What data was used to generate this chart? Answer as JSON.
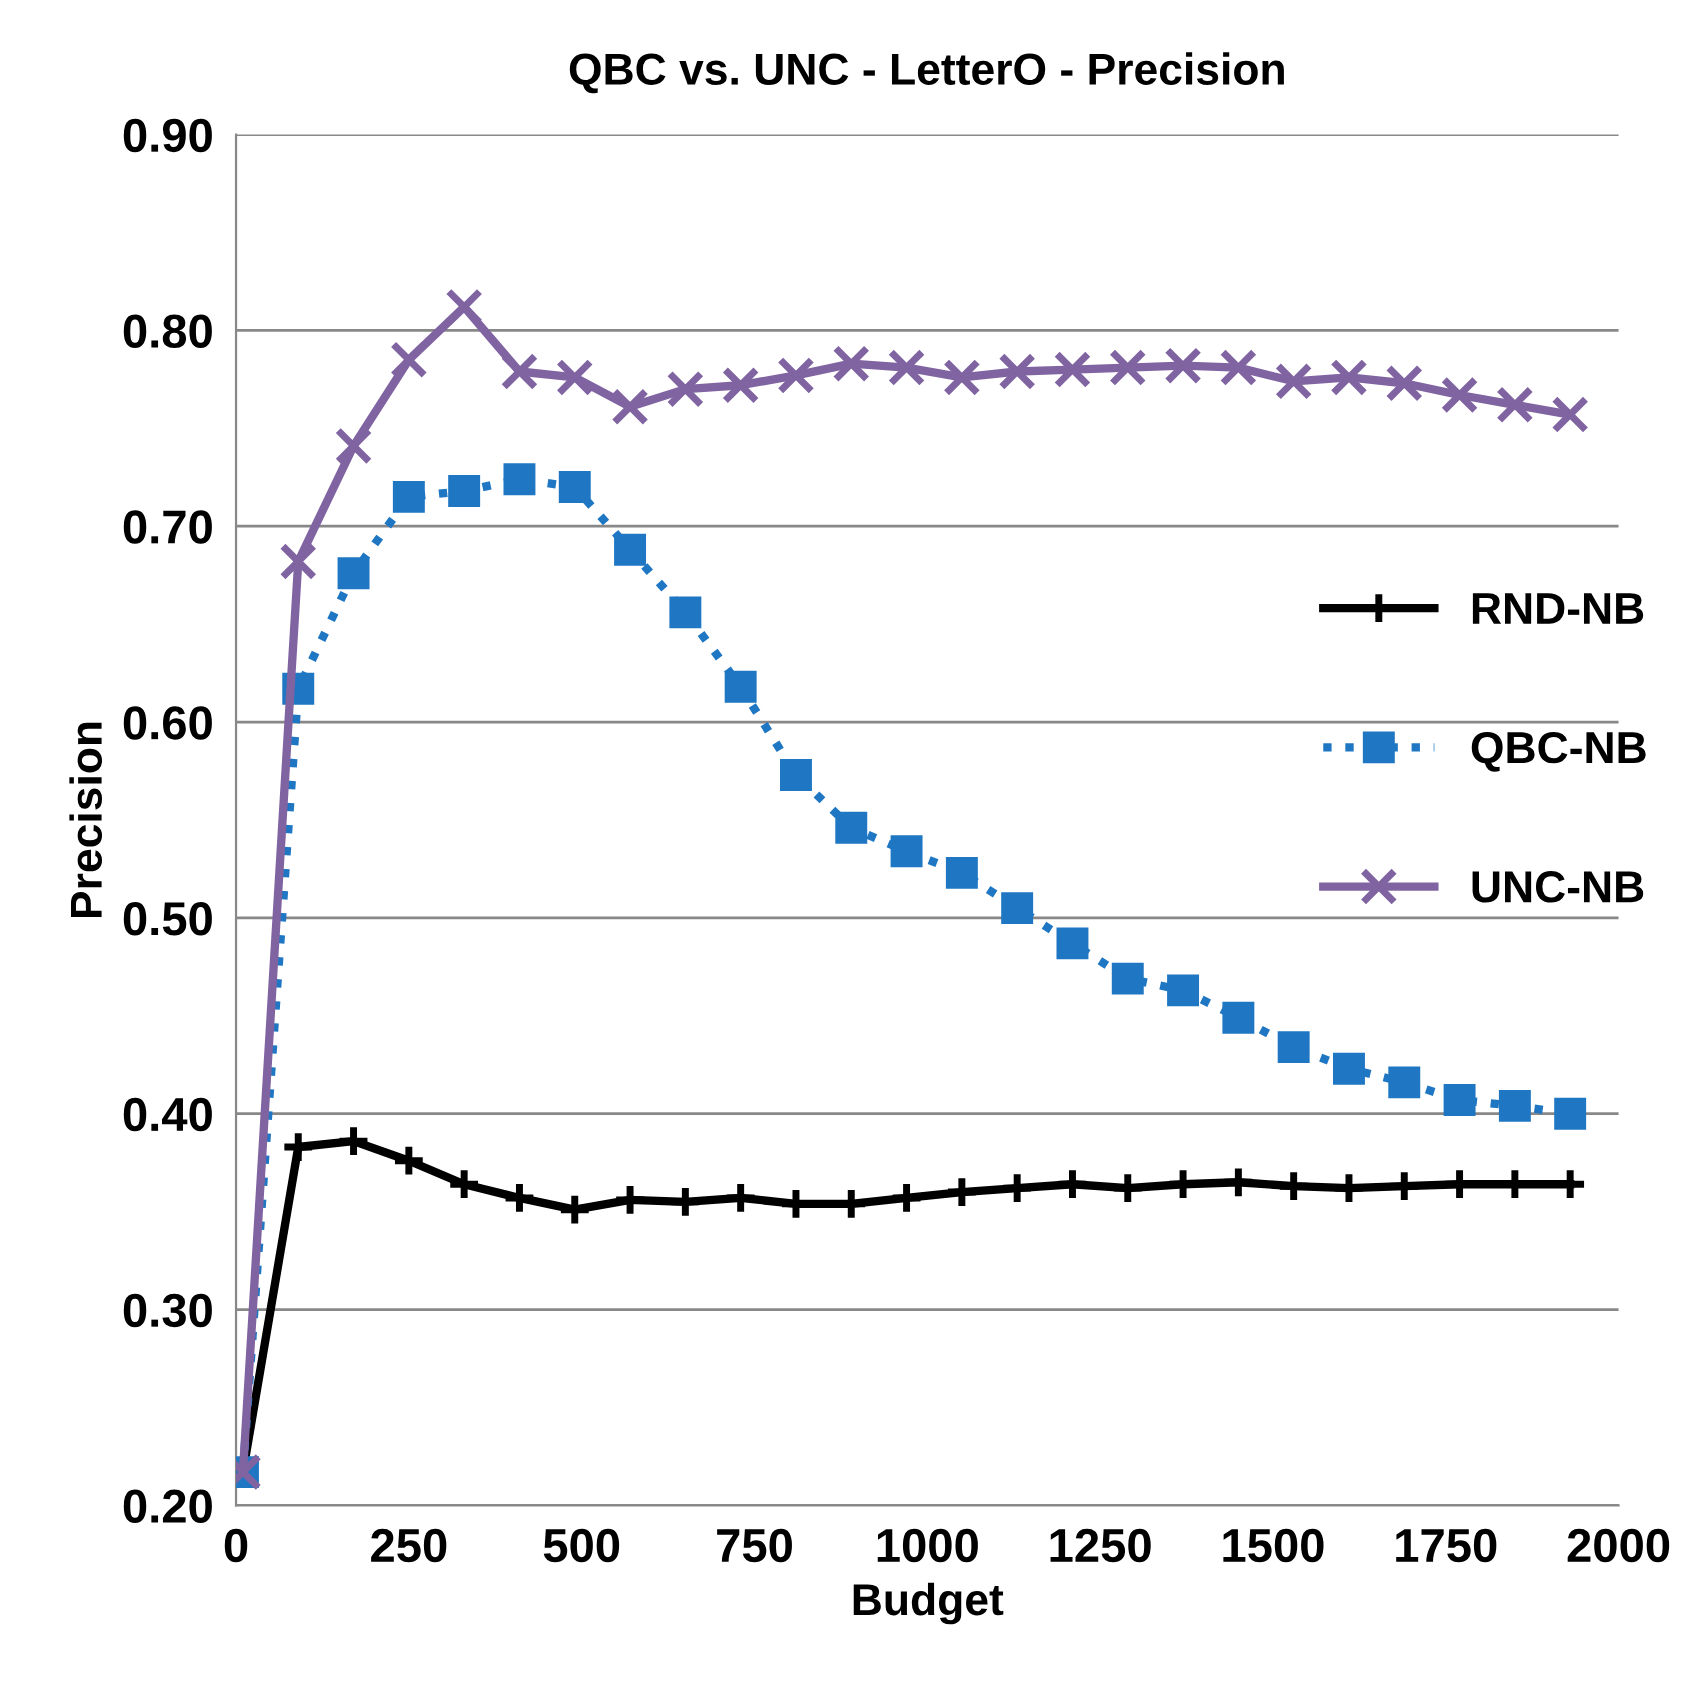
{
  "chart_data": {
    "type": "line",
    "title": "QBC vs. UNC - LetterO - Precision",
    "xlabel": "Budget",
    "ylabel": "Precision",
    "x": [
      10,
      90,
      170,
      250,
      330,
      410,
      490,
      570,
      650,
      730,
      810,
      890,
      970,
      1050,
      1130,
      1210,
      1290,
      1370,
      1450,
      1530,
      1610,
      1690,
      1770,
      1850,
      1930
    ],
    "series": [
      {
        "name": "RND-NB",
        "color": "#000000",
        "marker": "cross",
        "line_style": "solid",
        "values": [
          0.217,
          0.383,
          0.386,
          0.376,
          0.364,
          0.357,
          0.351,
          0.356,
          0.355,
          0.357,
          0.354,
          0.354,
          0.357,
          0.36,
          0.362,
          0.364,
          0.362,
          0.364,
          0.365,
          0.363,
          0.362,
          0.363,
          0.364,
          0.364,
          0.364
        ]
      },
      {
        "name": "QBC-NB",
        "color": "#1f77c4",
        "marker": "square",
        "line_style": "dotted",
        "values": [
          0.217,
          0.617,
          0.676,
          0.715,
          0.718,
          0.724,
          0.72,
          0.688,
          0.656,
          0.618,
          0.573,
          0.546,
          0.534,
          0.523,
          0.505,
          0.487,
          0.469,
          0.463,
          0.449,
          0.434,
          0.423,
          0.416,
          0.407,
          0.404,
          0.4
        ]
      },
      {
        "name": "UNC-NB",
        "color": "#8064a2",
        "marker": "cross",
        "line_style": "solid",
        "values": [
          0.217,
          0.682,
          0.741,
          0.785,
          0.812,
          0.779,
          0.776,
          0.761,
          0.77,
          0.772,
          0.777,
          0.783,
          0.781,
          0.776,
          0.779,
          0.78,
          0.781,
          0.782,
          0.781,
          0.774,
          0.776,
          0.773,
          0.767,
          0.762,
          0.757
        ]
      }
    ],
    "xlim": [
      0,
      2000
    ],
    "xticks": [
      0,
      250,
      500,
      750,
      1000,
      1250,
      1500,
      1750,
      2000
    ],
    "ylim": [
      0.2,
      0.9
    ],
    "yticks": [
      {
        "value": 0.2,
        "label": "0.20"
      },
      {
        "value": 0.3,
        "label": "0.30"
      },
      {
        "value": 0.4,
        "label": "0.40"
      },
      {
        "value": 0.5,
        "label": "0.50"
      },
      {
        "value": 0.6,
        "label": "0.60"
      },
      {
        "value": 0.7,
        "label": "0.70"
      },
      {
        "value": 0.8,
        "label": "0.80"
      },
      {
        "value": 0.9,
        "label": "0.90"
      }
    ],
    "grid": "y",
    "legend": "right"
  }
}
